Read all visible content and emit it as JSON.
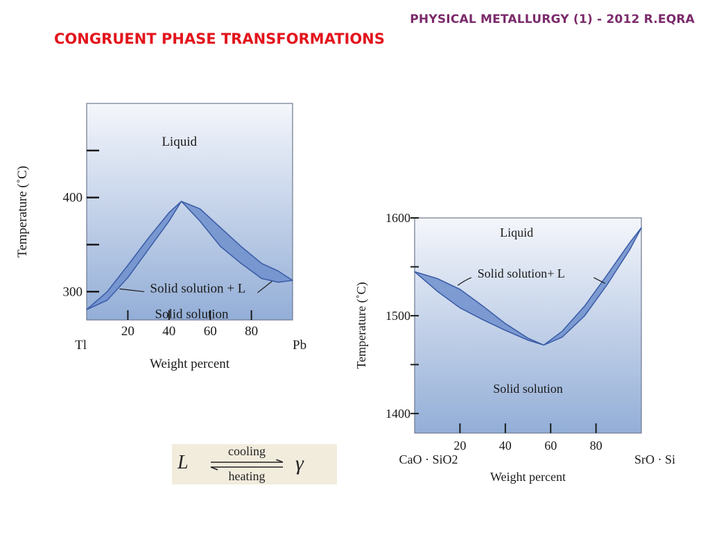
{
  "header": {
    "text": "PHYSICAL METALLURGY (1) - 2012 R.EQRA"
  },
  "slide_title": "CONGRUENT PHASE TRANSFORMATIONS",
  "chart_data": [
    {
      "type": "area",
      "title": "",
      "xlabel": "Weight percent",
      "ylabel": "Temperature (˚C)",
      "xlim": [
        0,
        100
      ],
      "ylim": [
        270,
        500
      ],
      "x_ticks": [
        20,
        40,
        60,
        80
      ],
      "y_ticks": [
        300,
        350,
        400,
        450
      ],
      "y_tick_labels": [
        "300",
        "",
        "400",
        ""
      ],
      "end_labels": {
        "left": "Tl",
        "right": "Pb"
      },
      "series": [
        {
          "x": [
            0,
            10,
            20,
            30,
            40,
            46,
            55,
            65,
            75,
            85,
            93,
            100
          ],
          "y": [
            281,
            300,
            328,
            357,
            384,
            396,
            388,
            368,
            348,
            330,
            322,
            312
          ]
        },
        {
          "x": [
            0,
            10,
            20,
            30,
            40,
            46,
            55,
            65,
            75,
            85,
            93,
            100
          ],
          "y": [
            281,
            291,
            315,
            345,
            375,
            396,
            375,
            348,
            330,
            314,
            310,
            312
          ]
        }
      ],
      "annotations": [
        {
          "text": "Liquid",
          "x": 45,
          "y": 455
        },
        {
          "text": "Solid solution + L",
          "x": 54,
          "y": 299
        },
        {
          "text": "Solid solution",
          "x": 51,
          "y": 272
        }
      ]
    },
    {
      "type": "area",
      "title": "",
      "xlabel": "Weight percent",
      "ylabel": "Temperature (˚C)",
      "xlim": [
        0,
        100
      ],
      "ylim": [
        1380,
        1600
      ],
      "x_ticks": [
        20,
        40,
        60,
        80
      ],
      "y_ticks": [
        1400,
        1450,
        1500,
        1550,
        1600
      ],
      "y_tick_labels": [
        "1400",
        "",
        "1500",
        "",
        "1600"
      ],
      "end_labels": {
        "left": "CaO · SiO2",
        "right": "SrO · Si"
      },
      "series": [
        {
          "x": [
            0,
            10,
            20,
            30,
            40,
            50,
            57,
            65,
            75,
            85,
            95,
            100
          ],
          "y": [
            1545,
            1538,
            1527,
            1510,
            1492,
            1477,
            1470,
            1484,
            1510,
            1542,
            1575,
            1590
          ]
        },
        {
          "x": [
            0,
            10,
            20,
            30,
            40,
            50,
            57,
            65,
            75,
            85,
            95,
            100
          ],
          "y": [
            1545,
            1525,
            1508,
            1496,
            1485,
            1475,
            1470,
            1478,
            1500,
            1532,
            1568,
            1590
          ]
        }
      ],
      "annotations": [
        {
          "text": "Liquid",
          "x": 45,
          "y": 1581
        },
        {
          "text": "Solid solution+ L",
          "x": 47,
          "y": 1539
        },
        {
          "text": "Solid solution",
          "x": 50,
          "y": 1421
        }
      ]
    }
  ],
  "equation": {
    "lhs": "L",
    "top": "cooling",
    "bottom": "heating",
    "rhs": "γ"
  },
  "colors": {
    "plot_top": "#f4f6fb",
    "plot_bottom": "#93aed7",
    "band_fill": "#6f8fcc",
    "band_stroke": "#3d5ea8",
    "title_red": "#e3151d",
    "header_purple": "#7b2a6b"
  }
}
